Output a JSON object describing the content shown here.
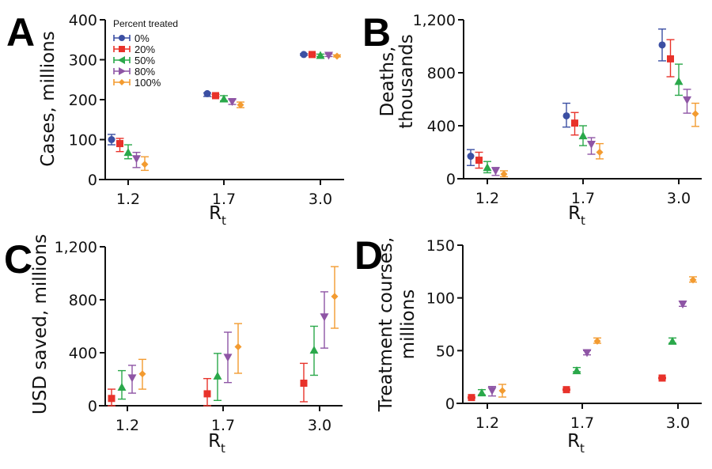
{
  "chart_data": [
    {
      "panel": "A",
      "type": "scatter",
      "xlabel": "R",
      "xlabel_sub": "t",
      "ylabel": [
        "Cases, millions"
      ],
      "categories": [
        "1.2",
        "1.7",
        "3.0"
      ],
      "yticks": [
        "0",
        "100",
        "200",
        "300",
        "400"
      ],
      "ytick_values": [
        0,
        100,
        200,
        300,
        400
      ],
      "ylim": [
        0,
        400
      ],
      "legend": {
        "title": "Percent treated",
        "placement": "top-left"
      },
      "series": [
        {
          "name": "0%",
          "color": "#3b4fa3",
          "marker": "circle",
          "values": [
            100,
            215,
            313
          ],
          "lower": [
            87,
            208,
            311
          ],
          "upper": [
            113,
            217,
            315
          ]
        },
        {
          "name": "20%",
          "color": "#e8322a",
          "marker": "square",
          "values": [
            90,
            210,
            313
          ],
          "lower": [
            70,
            207,
            311
          ],
          "upper": [
            103,
            213,
            315
          ]
        },
        {
          "name": "50%",
          "color": "#2aa84a",
          "marker": "triangle-up",
          "values": [
            68,
            202,
            311
          ],
          "lower": [
            52,
            197,
            308
          ],
          "upper": [
            87,
            210,
            314
          ]
        },
        {
          "name": "80%",
          "color": "#8e55a5",
          "marker": "triangle-down",
          "values": [
            52,
            195,
            311
          ],
          "lower": [
            30,
            188,
            308
          ],
          "upper": [
            68,
            200,
            314
          ]
        },
        {
          "name": "100%",
          "color": "#f39b30",
          "marker": "diamond",
          "values": [
            38,
            187,
            309
          ],
          "lower": [
            23,
            180,
            307
          ],
          "upper": [
            57,
            194,
            312
          ]
        }
      ]
    },
    {
      "panel": "B",
      "type": "scatter",
      "xlabel": "R",
      "xlabel_sub": "t",
      "ylabel": [
        "Deaths,",
        "thousands"
      ],
      "categories": [
        "1.2",
        "1.7",
        "3.0"
      ],
      "yticks": [
        "0",
        "400",
        "800",
        "1,200"
      ],
      "ytick_values": [
        0,
        400,
        800,
        1200
      ],
      "ylim": [
        0,
        1200
      ],
      "series": [
        {
          "name": "0%",
          "color": "#3b4fa3",
          "marker": "circle",
          "values": [
            170,
            475,
            1010
          ],
          "lower": [
            100,
            390,
            890
          ],
          "upper": [
            220,
            570,
            1130
          ]
        },
        {
          "name": "20%",
          "color": "#e8322a",
          "marker": "square",
          "values": [
            140,
            420,
            905
          ],
          "lower": [
            80,
            330,
            770
          ],
          "upper": [
            200,
            500,
            1050
          ]
        },
        {
          "name": "50%",
          "color": "#2aa84a",
          "marker": "triangle-up",
          "values": [
            85,
            325,
            735
          ],
          "lower": [
            45,
            250,
            630
          ],
          "upper": [
            130,
            400,
            865
          ]
        },
        {
          "name": "80%",
          "color": "#8e55a5",
          "marker": "triangle-down",
          "values": [
            60,
            260,
            595
          ],
          "lower": [
            25,
            185,
            495
          ],
          "upper": [
            85,
            310,
            675
          ]
        },
        {
          "name": "100%",
          "color": "#f39b30",
          "marker": "diamond",
          "values": [
            35,
            200,
            490
          ],
          "lower": [
            15,
            150,
            395
          ],
          "upper": [
            60,
            265,
            570
          ]
        }
      ]
    },
    {
      "panel": "C",
      "type": "scatter",
      "xlabel": "R",
      "xlabel_sub": "t",
      "ylabel": [
        "USD saved, millions"
      ],
      "categories": [
        "1.2",
        "1.7",
        "3.0"
      ],
      "yticks": [
        "0",
        "400",
        "800",
        "1,200"
      ],
      "ytick_values": [
        0,
        400,
        800,
        1200
      ],
      "ylim": [
        0,
        1200
      ],
      "series": [
        {
          "name": "20%",
          "color": "#e8322a",
          "marker": "square",
          "values": [
            55,
            90,
            170
          ],
          "lower": [
            0,
            0,
            30
          ],
          "upper": [
            125,
            205,
            320
          ]
        },
        {
          "name": "50%",
          "color": "#2aa84a",
          "marker": "triangle-up",
          "values": [
            140,
            225,
            420
          ],
          "lower": [
            50,
            40,
            230
          ],
          "upper": [
            265,
            395,
            600
          ]
        },
        {
          "name": "80%",
          "color": "#8e55a5",
          "marker": "triangle-down",
          "values": [
            210,
            365,
            670
          ],
          "lower": [
            95,
            175,
            435
          ],
          "upper": [
            305,
            555,
            860
          ]
        },
        {
          "name": "100%",
          "color": "#f39b30",
          "marker": "diamond",
          "values": [
            240,
            445,
            825
          ],
          "lower": [
            125,
            245,
            585
          ],
          "upper": [
            350,
            620,
            1050
          ]
        }
      ]
    },
    {
      "panel": "D",
      "type": "scatter",
      "xlabel": "R",
      "xlabel_sub": "t",
      "ylabel": [
        "Treatment courses,",
        "millions"
      ],
      "categories": [
        "1.2",
        "1.7",
        "3.0"
      ],
      "yticks": [
        "0",
        "50",
        "100",
        "150"
      ],
      "ytick_values": [
        0,
        50,
        100,
        150
      ],
      "ylim": [
        0,
        150
      ],
      "series": [
        {
          "name": "20%",
          "color": "#e8322a",
          "marker": "square",
          "values": [
            5.5,
            13,
            24
          ],
          "lower": [
            5,
            12.5,
            23.5
          ],
          "upper": [
            6,
            13.5,
            24.5
          ]
        },
        {
          "name": "50%",
          "color": "#2aa84a",
          "marker": "triangle-up",
          "values": [
            10,
            31,
            59
          ],
          "lower": [
            8,
            30,
            57
          ],
          "upper": [
            13,
            34,
            62
          ]
        },
        {
          "name": "80%",
          "color": "#8e55a5",
          "marker": "triangle-down",
          "values": [
            12,
            48,
            94
          ],
          "lower": [
            7,
            46,
            92
          ],
          "upper": [
            16,
            50,
            97
          ]
        },
        {
          "name": "100%",
          "color": "#f39b30",
          "marker": "diamond",
          "values": [
            12,
            59,
            117
          ],
          "lower": [
            6,
            57,
            115
          ],
          "upper": [
            18,
            62,
            120
          ]
        }
      ]
    }
  ]
}
